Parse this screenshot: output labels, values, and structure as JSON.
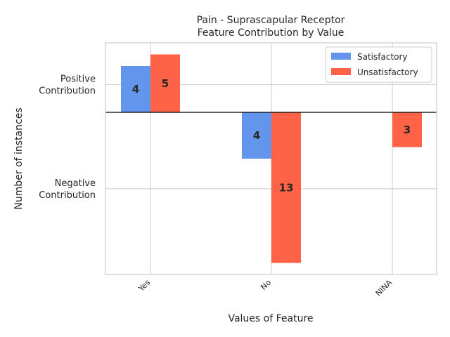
{
  "chart_data": {
    "type": "bar",
    "title_line1": "Pain - Suprascapular Receptor",
    "title_line2": "Feature Contribution by Value",
    "xlabel": "Values of Feature",
    "ylabel": "Number of instances",
    "categories": [
      "Yes",
      "No",
      "NINA"
    ],
    "series": [
      {
        "name": "Satisfactory",
        "color": "#6495ED",
        "values": [
          4,
          -4,
          null
        ]
      },
      {
        "name": "Unsatisfactory",
        "color": "#FF6347",
        "values": [
          5,
          -13,
          -3
        ]
      }
    ],
    "ylim": [
      -14,
      6
    ],
    "ytick_values": [
      2.4,
      -6.6
    ],
    "ytick_labels": [
      [
        "Positive",
        "Contribution"
      ],
      [
        "Negative",
        "Contribution"
      ]
    ],
    "legend_position": "top-right",
    "grid": true
  }
}
